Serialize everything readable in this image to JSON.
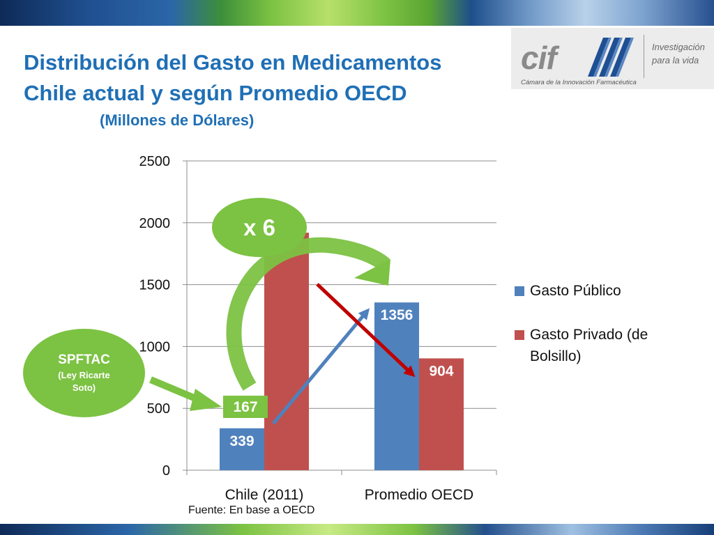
{
  "slide": {
    "title_line1": "Distribución del Gasto en Medicamentos",
    "title_line2": "Chile actual y según Promedio OECD",
    "subtitle": "(Millones de Dólares)",
    "source": "Fuente: En base a OECD"
  },
  "logo": {
    "mark": "cif",
    "tagline_line1": "Investigación",
    "tagline_line2": "para la vida",
    "subline": "Cámara de la Innovación Farmacéutica"
  },
  "callouts": {
    "spftac_title": "SPFTAC",
    "spftac_note": "(Ley Ricarte Soto)",
    "multiplier": "x 6",
    "spftac_value": "167"
  },
  "colors": {
    "publico": "#4f81bd",
    "privado": "#c0504d",
    "accent_green": "#7cc243",
    "title_blue": "#1f6fb5"
  },
  "chart_data": {
    "type": "bar",
    "categories": [
      "Chile (2011)",
      "Promedio OECD"
    ],
    "series": [
      {
        "name": "Gasto Público",
        "values": [
          339,
          1356
        ]
      },
      {
        "name": "Gasto Privado (de Bolsillo)",
        "values": [
          1920,
          904
        ]
      }
    ],
    "data_labels": [
      "339",
      "1356",
      "904"
    ],
    "yticks": [
      0,
      500,
      1000,
      1500,
      2000,
      2500
    ],
    "ylim": [
      0,
      2500
    ],
    "grid": true,
    "legend": "right"
  }
}
